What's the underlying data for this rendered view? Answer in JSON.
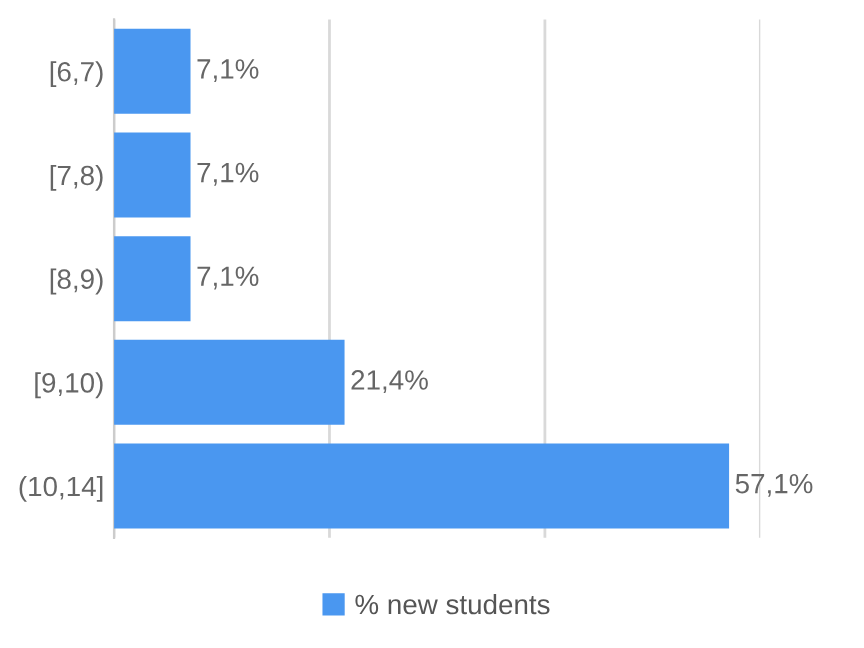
{
  "chart_data": {
    "type": "bar",
    "orientation": "horizontal",
    "categories": [
      "[6,7)",
      "[7,8)",
      "[8,9)",
      "[9,10)",
      "(10,14]"
    ],
    "series": [
      {
        "name": "% new students",
        "color": "#4a97f0",
        "values": [
          7.1,
          7.1,
          7.1,
          21.4,
          57.1
        ],
        "value_labels": [
          "7,1%",
          "7,1%",
          "7,1%",
          "21,4%",
          "57,1%"
        ]
      }
    ],
    "xlim": [
      0,
      60
    ],
    "xticks": [
      {
        "value": 0,
        "label": null
      },
      {
        "value": 20,
        "label": null
      },
      {
        "value": 40,
        "label": null
      },
      {
        "value": 60,
        "label": null
      }
    ],
    "grid": "x",
    "legend": "bottom",
    "tick_labels": "y"
  }
}
